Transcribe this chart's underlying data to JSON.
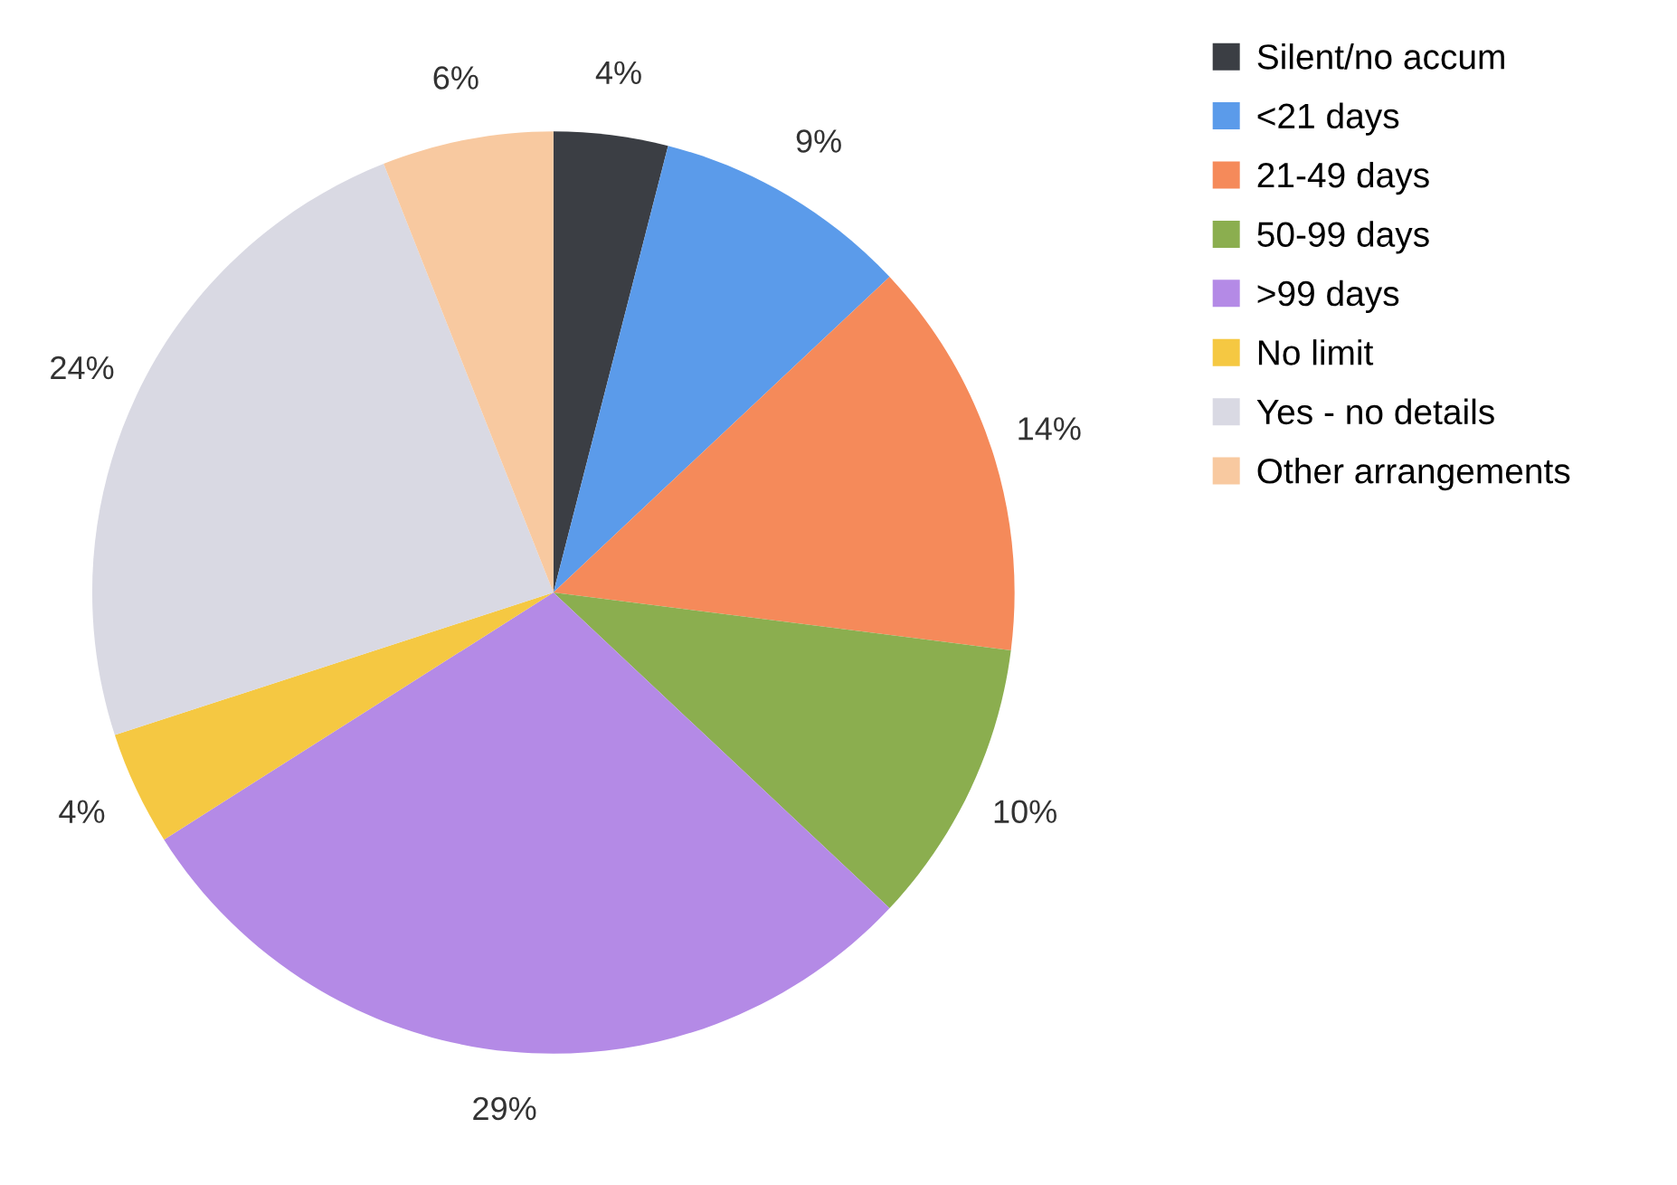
{
  "chart_data": {
    "type": "pie",
    "categories": [
      "Silent/no accum",
      "<21 days",
      "21-49 days",
      "50-99 days",
      ">99 days",
      "No limit",
      "Yes - no details",
      "Other arrangements"
    ],
    "values": [
      4,
      9,
      14,
      10,
      29,
      4,
      24,
      6
    ],
    "colors": [
      "#3b3e44",
      "#5b9bea",
      "#f58a5a",
      "#8bae4f",
      "#b48ae6",
      "#f5c842",
      "#d9d9e3",
      "#f8c9a0"
    ],
    "value_labels": [
      "4%",
      "9%",
      "14%",
      "10%",
      "29%",
      "4%",
      "24%",
      "6%"
    ],
    "legend": "top right"
  }
}
